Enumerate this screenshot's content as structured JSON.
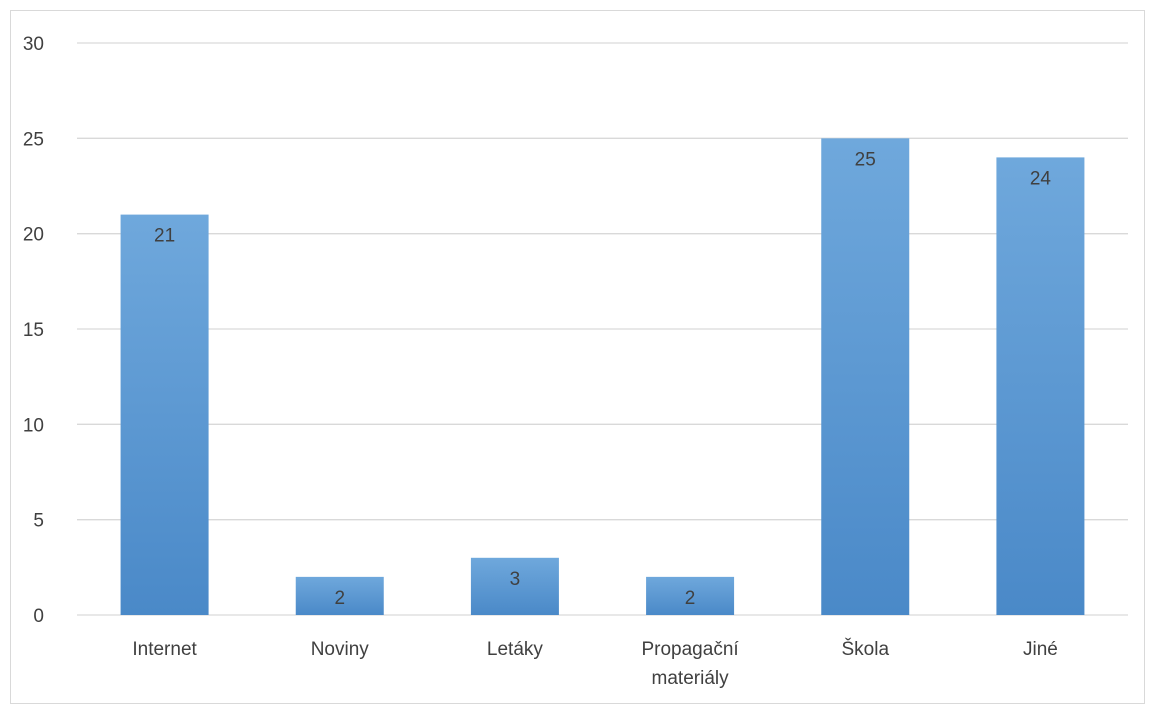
{
  "chart_data": {
    "type": "bar",
    "title": "",
    "xlabel": "",
    "ylabel": "",
    "categories": [
      [
        "Internet"
      ],
      [
        "Noviny"
      ],
      [
        "Letáky"
      ],
      [
        "Propagační",
        "materiály"
      ],
      [
        "Škola"
      ],
      [
        "Jiné"
      ]
    ],
    "values": [
      21,
      2,
      3,
      2,
      25,
      24
    ],
    "data_labels": [
      "21",
      "2",
      "3",
      "2",
      "25",
      "24"
    ],
    "ylim": [
      0,
      30
    ],
    "yticks": [
      0,
      5,
      10,
      15,
      20,
      25,
      30
    ],
    "ytick_labels": [
      "0",
      "5",
      "10",
      "15",
      "20",
      "25",
      "30"
    ],
    "grid": true,
    "legend": "none",
    "colors": {
      "bar_top": "#6fa8dc",
      "bar_bottom": "#4a89c8",
      "grid": "#d9d9d9",
      "text": "#404040"
    }
  }
}
